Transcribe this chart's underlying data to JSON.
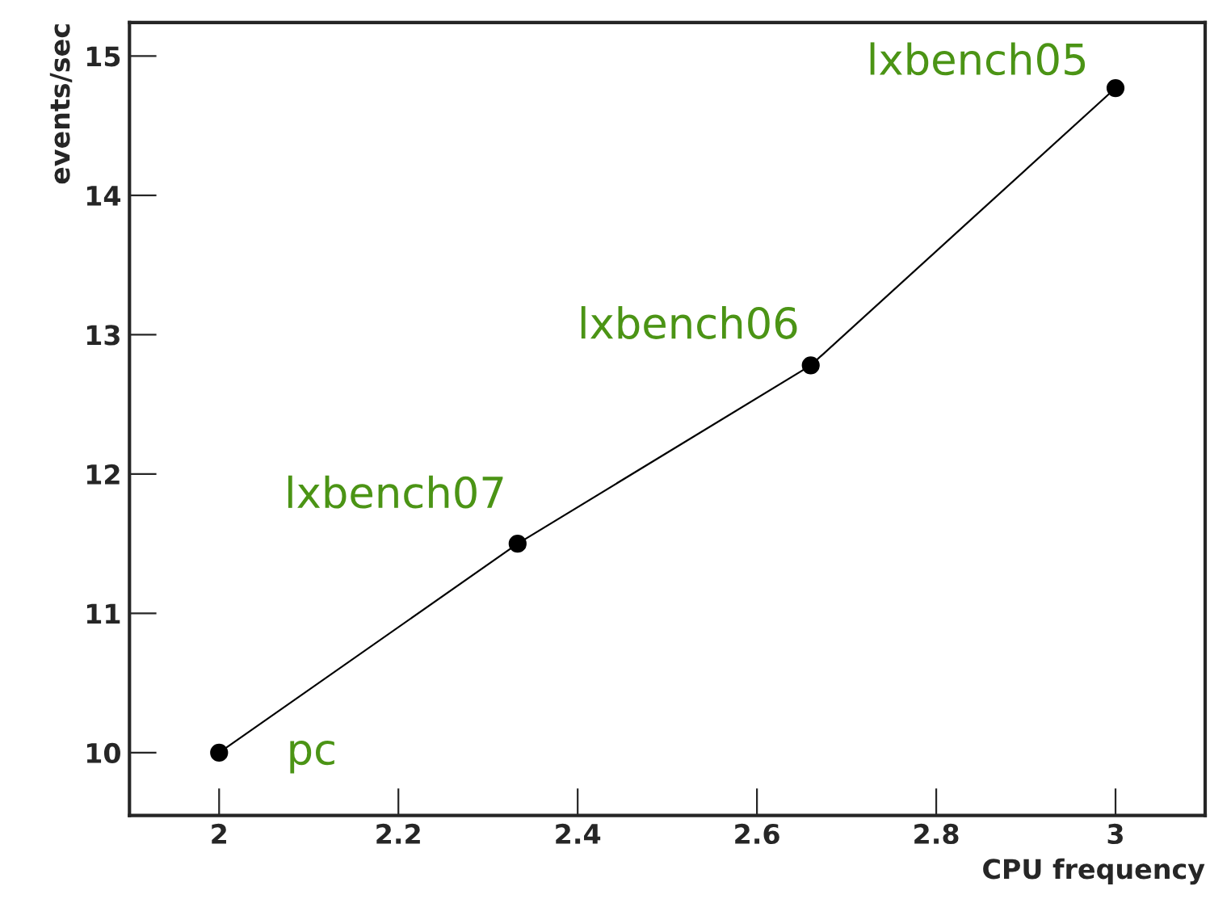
{
  "chart_data": {
    "type": "line",
    "xlabel": "CPU frequency",
    "ylabel": "events/sec",
    "x": [
      2,
      2.333,
      2.66,
      3
    ],
    "series": [
      {
        "color": "#000000",
        "values": [
          10,
          11.5,
          12.78,
          14.77
        ]
      }
    ],
    "marker": "circle",
    "line_style": "solid",
    "grid": false,
    "legend": false,
    "xlim": [
      1.9,
      3.1
    ],
    "xticks": [
      2,
      2.2,
      2.4,
      2.6,
      2.8,
      3
    ],
    "ylim": [
      9.55,
      15.24
    ],
    "yticks": [
      10,
      11,
      12,
      13,
      14,
      15
    ],
    "annotations": [
      {
        "text": "pc",
        "x": 2,
        "y": 10
      },
      {
        "text": "lxbench07",
        "x": 2.333,
        "y": 11.5
      },
      {
        "text": "lxbench06",
        "x": 2.66,
        "y": 12.78
      },
      {
        "text": "lxbench05",
        "x": 3,
        "y": 14.77
      }
    ]
  }
}
